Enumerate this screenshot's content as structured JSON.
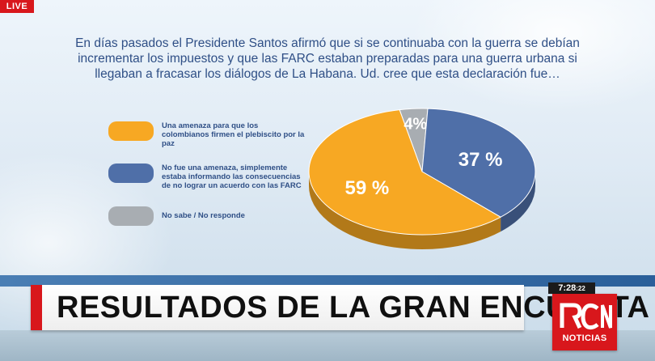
{
  "live_badge": "LIVE",
  "question": "En días pasados el Presidente Santos afirmó que si se continuaba con la guerra se debían incrementar los impuestos  y que las FARC estaban preparadas para una guerra urbana si llegaban a fracasar los diálogos de La Habana. Ud. cree que esta declaración fue…",
  "chart_data": {
    "type": "pie",
    "title": "",
    "slices": [
      {
        "label": "Una amenaza para que los colombianos firmen el plebiscito por la paz",
        "value": 59,
        "display": "59 %",
        "color": "#f7a823"
      },
      {
        "label": "No fue una amenaza, simplemente estaba informando las consecuencias de no lograr un acuerdo con las FARC",
        "value": 37,
        "display": "37 %",
        "color": "#4f6fa8"
      },
      {
        "label": "No sabe / No responde",
        "value": 4,
        "display": "4%",
        "color": "#a8adb2"
      }
    ],
    "legend_position": "left"
  },
  "banner": {
    "title": "RESULTADOS DE LA GRAN ENCUESTA"
  },
  "clock": {
    "time": "7:28",
    "seconds": ":22"
  },
  "logo": {
    "text": "NOTICIAS"
  },
  "colors": {
    "accent_red": "#d8171c",
    "question_text": "#2f4f86"
  }
}
